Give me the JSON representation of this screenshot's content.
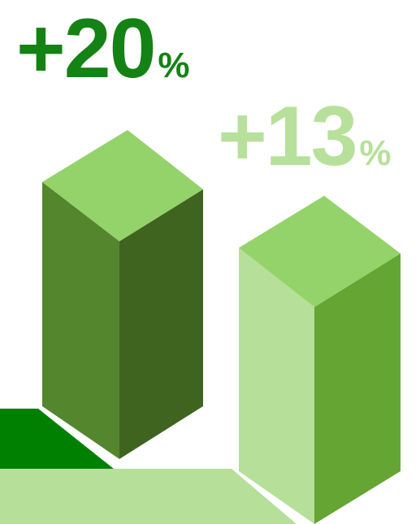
{
  "stats": [
    {
      "value": "+20",
      "unit": "%",
      "color": "#148214"
    },
    {
      "value": "+13",
      "unit": "%",
      "color": "#b7e09a"
    }
  ],
  "bars": [
    {
      "name": "left-bar",
      "top": "#94d36a",
      "left": "#54862d",
      "right": "#3f6420"
    },
    {
      "name": "right-bar",
      "top": "#94d36a",
      "left": "#b6df9a",
      "right": "#64a533"
    }
  ],
  "ground": {
    "dark": "#008000",
    "light": "#b6df9a"
  }
}
